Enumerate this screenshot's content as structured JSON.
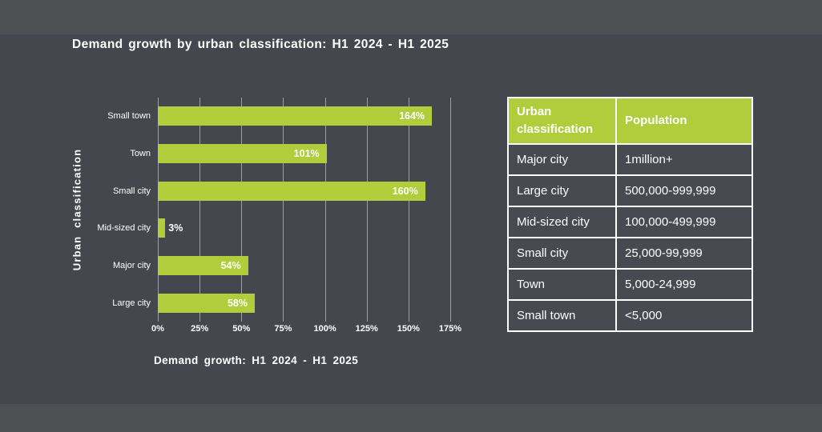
{
  "title": "Demand growth by urban classification: H1 2024 - H1 2025",
  "chart_data": {
    "type": "bar",
    "orientation": "horizontal",
    "title": "Demand growth by urban classification: H1 2024 - H1 2025",
    "categories": [
      "Small town",
      "Town",
      "Small city",
      "Mid-sized city",
      "Major city",
      "Large city"
    ],
    "values": [
      164,
      101,
      160,
      3,
      54,
      58
    ],
    "value_labels": [
      "164%",
      "101%",
      "160%",
      "3%",
      "54%",
      "58%"
    ],
    "xlabel": "Demand growth: H1 2024 - H1 2025",
    "ylabel": "Urban classification",
    "x_ticks": [
      "0%",
      "25%",
      "50%",
      "75%",
      "100%",
      "125%",
      "150%",
      "175%"
    ],
    "x_tick_values": [
      0,
      25,
      50,
      75,
      100,
      125,
      150,
      175
    ],
    "xlim": [
      0,
      175
    ],
    "grid": "vertical-gridlines",
    "legend": "none"
  },
  "table": {
    "headers": [
      "Urban classification",
      "Population"
    ],
    "rows": [
      {
        "classification": "Major city",
        "population": "1million+"
      },
      {
        "classification": "Large city",
        "population": "500,000-999,999"
      },
      {
        "classification": "Mid-sized city",
        "population": "100,000-499,999"
      },
      {
        "classification": "Small city",
        "population": "25,000-99,999"
      },
      {
        "classification": "Town",
        "population": "5,000-24,999"
      },
      {
        "classification": "Small town",
        "population": "<5,000"
      }
    ]
  },
  "colors": {
    "accent_green": "#b2cd3c",
    "background": "#45474e",
    "band": "#4e5054",
    "gridline": "#9aa0a4",
    "text": "#ffffff"
  }
}
